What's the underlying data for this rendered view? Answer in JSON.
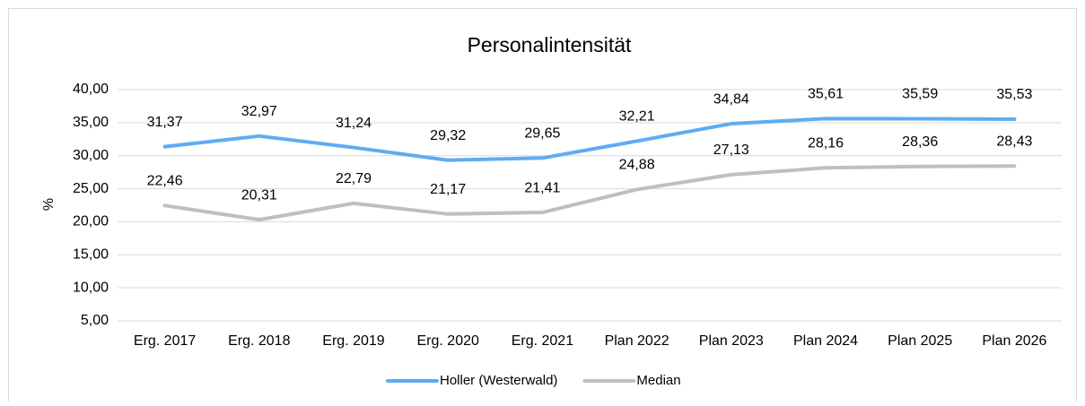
{
  "chart_data": {
    "type": "line",
    "title": "Personalintensität",
    "y_label": "%",
    "categories": [
      "Erg. 2017",
      "Erg. 2018",
      "Erg. 2019",
      "Erg. 2020",
      "Erg. 2021",
      "Plan 2022",
      "Plan 2023",
      "Plan 2024",
      "Plan 2025",
      "Plan 2026"
    ],
    "series": [
      {
        "name": "Holler (Westerwald)",
        "color": "#5eacf2",
        "values": [
          31.37,
          32.97,
          31.24,
          29.32,
          29.65,
          32.21,
          34.84,
          35.61,
          35.59,
          35.53
        ],
        "value_labels": [
          "31,37",
          "32,97",
          "31,24",
          "29,32",
          "29,65",
          "32,21",
          "34,84",
          "35,61",
          "35,59",
          "35,53"
        ]
      },
      {
        "name": "Median",
        "color": "#bfbfbf",
        "values": [
          22.46,
          20.31,
          22.79,
          21.17,
          21.41,
          24.88,
          27.13,
          28.16,
          28.36,
          28.43
        ],
        "value_labels": [
          "22,46",
          "20,31",
          "22,79",
          "21,17",
          "21,41",
          "24,88",
          "27,13",
          "28,16",
          "28,36",
          "28,43"
        ]
      }
    ],
    "ylim": [
      5,
      40
    ],
    "yticks": [
      {
        "value": 5,
        "label": "5,00"
      },
      {
        "value": 10,
        "label": "10,00"
      },
      {
        "value": 15,
        "label": "15,00"
      },
      {
        "value": 20,
        "label": "20,00"
      },
      {
        "value": 25,
        "label": "25,00"
      },
      {
        "value": 30,
        "label": "30,00"
      },
      {
        "value": 35,
        "label": "35,00"
      },
      {
        "value": 40,
        "label": "40,00"
      }
    ],
    "grid": true,
    "legend": "bottom"
  }
}
